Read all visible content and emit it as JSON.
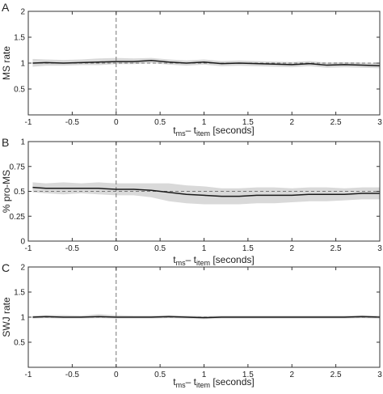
{
  "chart_data": [
    {
      "panel": "A",
      "type": "line",
      "ylabel": "MS rate",
      "xlabel_parts": [
        "t",
        "ms",
        "– t",
        "item",
        " [seconds]"
      ],
      "xlim": [
        -1,
        3
      ],
      "ylim": [
        0,
        2
      ],
      "xticks": [
        -1,
        -0.5,
        0,
        0.5,
        1,
        1.5,
        2,
        2.5,
        3
      ],
      "xtick_labels": [
        "-1",
        "-0.5",
        "0",
        "0.5",
        "1",
        "1.5",
        "2",
        "2.5",
        "3"
      ],
      "yticks": [
        0.5,
        1,
        1.5,
        2
      ],
      "ytick_labels": [
        "0.5",
        "1",
        "1.5",
        "2"
      ],
      "reference_line": 1,
      "event_line_x": 0,
      "x": [
        -0.95,
        -0.8,
        -0.6,
        -0.4,
        -0.2,
        0,
        0.2,
        0.4,
        0.6,
        0.8,
        1,
        1.2,
        1.4,
        1.6,
        1.8,
        2,
        2.2,
        2.4,
        2.6,
        2.8,
        3
      ],
      "y": [
        1.0,
        1.01,
        1.0,
        1.01,
        1.02,
        1.03,
        1.03,
        1.05,
        1.02,
        1.0,
        1.02,
        0.99,
        1.0,
        0.99,
        0.98,
        0.97,
        0.99,
        0.96,
        0.97,
        0.96,
        0.95
      ],
      "y_lower": [
        0.93,
        0.95,
        0.95,
        0.96,
        0.96,
        0.98,
        0.98,
        1.0,
        0.97,
        0.95,
        0.97,
        0.94,
        0.95,
        0.94,
        0.93,
        0.92,
        0.94,
        0.91,
        0.92,
        0.91,
        0.9
      ],
      "y_upper": [
        1.08,
        1.07,
        1.06,
        1.07,
        1.09,
        1.1,
        1.09,
        1.1,
        1.07,
        1.05,
        1.07,
        1.04,
        1.05,
        1.04,
        1.03,
        1.02,
        1.04,
        1.01,
        1.02,
        1.01,
        1.0
      ]
    },
    {
      "panel": "B",
      "type": "line",
      "ylabel": "% pro-MS",
      "xlabel_parts": [
        "t",
        "ms",
        "– t",
        "item",
        " [seconds]"
      ],
      "xlim": [
        -1,
        3
      ],
      "ylim": [
        0,
        1
      ],
      "xticks": [
        -1,
        -0.5,
        0,
        0.5,
        1,
        1.5,
        2,
        2.5,
        3
      ],
      "xtick_labels": [
        "-1",
        "-0.5",
        "0",
        "0.5",
        "1",
        "1.5",
        "2",
        "2.5",
        "3"
      ],
      "yticks": [
        0,
        0.25,
        0.5,
        0.75,
        1
      ],
      "ytick_labels": [
        "0",
        "0.25",
        "0.5",
        "0.75",
        "1"
      ],
      "reference_line": 0.5,
      "event_line_x": 0,
      "x": [
        -0.95,
        -0.8,
        -0.6,
        -0.4,
        -0.2,
        0,
        0.2,
        0.4,
        0.6,
        0.8,
        1,
        1.2,
        1.4,
        1.6,
        1.8,
        2,
        2.2,
        2.4,
        2.6,
        2.8,
        3
      ],
      "y": [
        0.54,
        0.53,
        0.53,
        0.53,
        0.53,
        0.52,
        0.52,
        0.51,
        0.49,
        0.47,
        0.46,
        0.45,
        0.45,
        0.46,
        0.46,
        0.46,
        0.47,
        0.47,
        0.47,
        0.48,
        0.48
      ],
      "y_lower": [
        0.49,
        0.48,
        0.47,
        0.48,
        0.47,
        0.46,
        0.46,
        0.44,
        0.4,
        0.38,
        0.37,
        0.37,
        0.37,
        0.38,
        0.38,
        0.39,
        0.4,
        0.4,
        0.41,
        0.42,
        0.42
      ],
      "y_upper": [
        0.59,
        0.58,
        0.59,
        0.58,
        0.59,
        0.58,
        0.58,
        0.58,
        0.58,
        0.56,
        0.55,
        0.53,
        0.53,
        0.54,
        0.54,
        0.53,
        0.54,
        0.54,
        0.53,
        0.54,
        0.54
      ]
    },
    {
      "panel": "C",
      "type": "line",
      "ylabel": "SWJ rate",
      "xlabel_parts": [
        "t",
        "ms",
        "– t",
        "item",
        " [seconds]"
      ],
      "xlim": [
        -1,
        3
      ],
      "ylim": [
        0,
        2
      ],
      "xticks": [
        -1,
        -0.5,
        0,
        0.5,
        1,
        1.5,
        2,
        2.5,
        3
      ],
      "xtick_labels": [
        "-1",
        "-0.5",
        "0",
        "0.5",
        "1",
        "1.5",
        "2",
        "2.5",
        "3"
      ],
      "yticks": [
        0.5,
        1,
        1.5,
        2
      ],
      "ytick_labels": [
        "0.5",
        "1",
        "1.5",
        "2"
      ],
      "reference_line": 1,
      "event_line_x": 0,
      "x": [
        -0.95,
        -0.8,
        -0.6,
        -0.4,
        -0.2,
        0,
        0.2,
        0.4,
        0.6,
        0.8,
        1,
        1.2,
        1.4,
        1.6,
        1.8,
        2,
        2.2,
        2.4,
        2.6,
        2.8,
        3
      ],
      "y": [
        1.0,
        1.01,
        1.0,
        1.0,
        1.01,
        1.0,
        1.0,
        1.0,
        1.01,
        1.0,
        0.99,
        1.0,
        1.0,
        1.0,
        1.0,
        1.0,
        1.0,
        1.0,
        1.0,
        1.01,
        1.0
      ],
      "y_lower": [
        0.97,
        0.98,
        0.97,
        0.97,
        0.98,
        0.97,
        0.97,
        0.97,
        0.98,
        0.97,
        0.96,
        0.97,
        0.97,
        0.97,
        0.97,
        0.97,
        0.97,
        0.97,
        0.97,
        0.98,
        0.97
      ],
      "y_upper": [
        1.03,
        1.04,
        1.04,
        1.03,
        1.06,
        1.04,
        1.03,
        1.03,
        1.04,
        1.03,
        1.02,
        1.03,
        1.03,
        1.03,
        1.03,
        1.03,
        1.03,
        1.03,
        1.03,
        1.04,
        1.03
      ]
    }
  ],
  "colors": {
    "line": "#1a1a1a",
    "band": "#d9d9d9",
    "axis": "#333333",
    "reference": "#777777"
  }
}
